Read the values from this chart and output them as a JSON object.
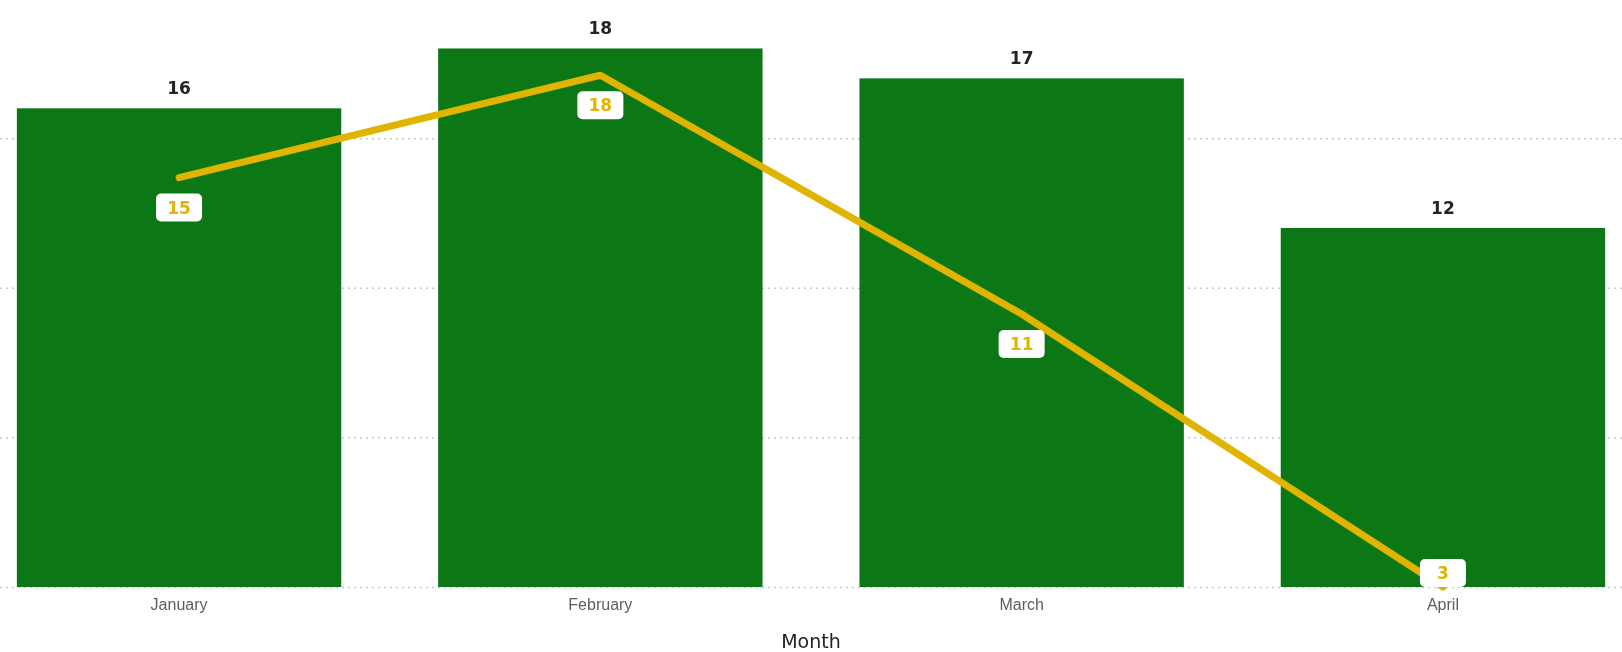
{
  "chart_data": {
    "type": "bar",
    "xlabel": "Month",
    "categories": [
      "January",
      "February",
      "March",
      "April"
    ],
    "series": [
      {
        "color": "#0b7715",
        "values": [
          16,
          18,
          17,
          12
        ]
      },
      {
        "type": "line",
        "axis": "y2",
        "color": "#e0b400",
        "values": [
          15,
          18,
          11,
          3
        ]
      }
    ],
    "yticks": [
      {
        "value": 0,
        "label": null
      },
      {
        "value": 5,
        "label": null
      },
      {
        "value": 10,
        "label": null
      },
      {
        "value": 15,
        "label": null
      }
    ],
    "grid": "y",
    "tick_labels": "x",
    "data_labels": true,
    "marker": "none",
    "line_style": "solid"
  }
}
